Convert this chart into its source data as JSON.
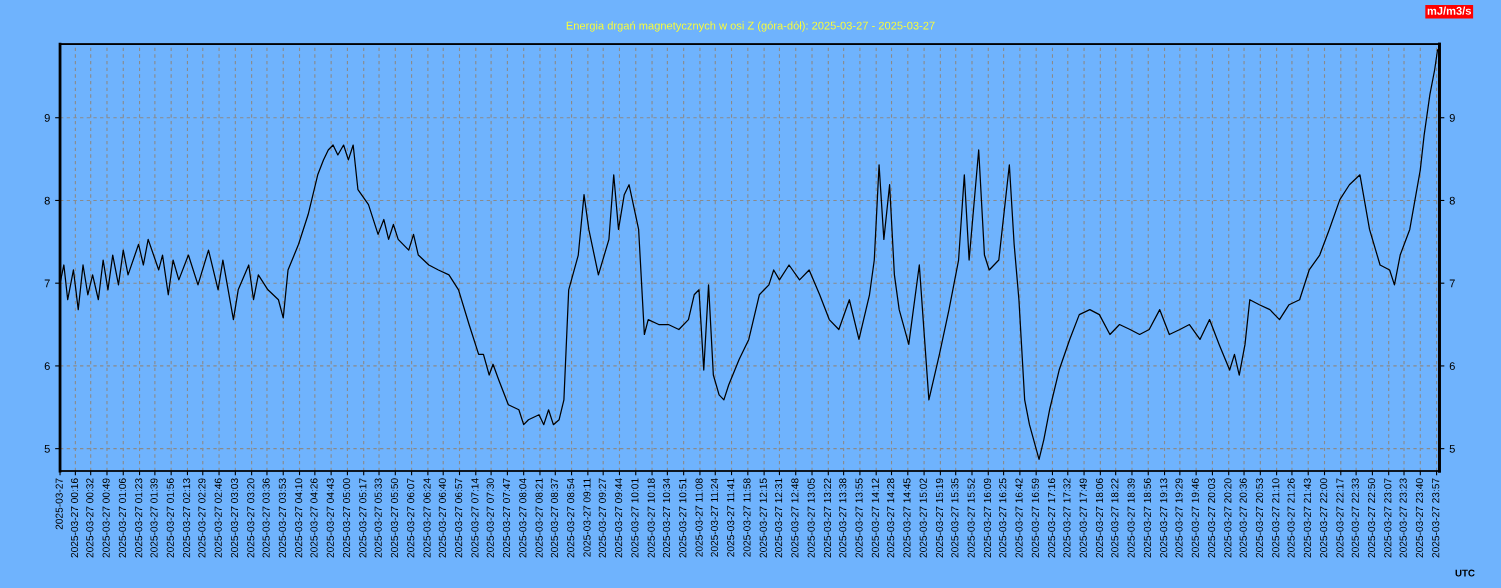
{
  "chart_data": {
    "type": "line",
    "title": "Energia drgań magnetycznych w osi Z (góra-dół): 2025-03-27 - 2025-03-27",
    "xlabel": "UTC",
    "annotations": [
      "mJ/m3/s"
    ],
    "grid": true,
    "line_style": "solid",
    "marker": "none",
    "xlim": [
      "2025-03-27T00:00",
      "2025-03-28T00:00"
    ],
    "ylim": [
      4.73,
      9.89
    ],
    "yticks": [
      5,
      6,
      7,
      8,
      9
    ],
    "y2lim": [
      4.73,
      9.89
    ],
    "y2ticks": [
      5,
      6,
      7,
      8,
      9
    ],
    "xticks": [
      {
        "value": "2025-03-27T00:00",
        "label": "2025-03-27"
      },
      {
        "value": "2025-03-27T00:16",
        "label": "2025-03-27 00:16"
      },
      {
        "value": "2025-03-27T00:32",
        "label": "2025-03-27 00:32"
      },
      {
        "value": "2025-03-27T00:49",
        "label": "2025-03-27 00:49"
      },
      {
        "value": "2025-03-27T01:06",
        "label": "2025-03-27 01:06"
      },
      {
        "value": "2025-03-27T01:23",
        "label": "2025-03-27 01:23"
      },
      {
        "value": "2025-03-27T01:39",
        "label": "2025-03-27 01:39"
      },
      {
        "value": "2025-03-27T01:56",
        "label": "2025-03-27 01:56"
      },
      {
        "value": "2025-03-27T02:13",
        "label": "2025-03-27 02:13"
      },
      {
        "value": "2025-03-27T02:29",
        "label": "2025-03-27 02:29"
      },
      {
        "value": "2025-03-27T02:46",
        "label": "2025-03-27 02:46"
      },
      {
        "value": "2025-03-27T03:03",
        "label": "2025-03-27 03:03"
      },
      {
        "value": "2025-03-27T03:20",
        "label": "2025-03-27 03:20"
      },
      {
        "value": "2025-03-27T03:36",
        "label": "2025-03-27 03:36"
      },
      {
        "value": "2025-03-27T03:53",
        "label": "2025-03-27 03:53"
      },
      {
        "value": "2025-03-27T04:10",
        "label": "2025-03-27 04:10"
      },
      {
        "value": "2025-03-27T04:26",
        "label": "2025-03-27 04:26"
      },
      {
        "value": "2025-03-27T04:43",
        "label": "2025-03-27 04:43"
      },
      {
        "value": "2025-03-27T05:00",
        "label": "2025-03-27 05:00"
      },
      {
        "value": "2025-03-27T05:17",
        "label": "2025-03-27 05:17"
      },
      {
        "value": "2025-03-27T05:33",
        "label": "2025-03-27 05:33"
      },
      {
        "value": "2025-03-27T05:50",
        "label": "2025-03-27 05:50"
      },
      {
        "value": "2025-03-27T06:07",
        "label": "2025-03-27 06:07"
      },
      {
        "value": "2025-03-27T06:24",
        "label": "2025-03-27 06:24"
      },
      {
        "value": "2025-03-27T06:40",
        "label": "2025-03-27 06:40"
      },
      {
        "value": "2025-03-27T06:57",
        "label": "2025-03-27 06:57"
      },
      {
        "value": "2025-03-27T07:14",
        "label": "2025-03-27 07:14"
      },
      {
        "value": "2025-03-27T07:30",
        "label": "2025-03-27 07:30"
      },
      {
        "value": "2025-03-27T07:47",
        "label": "2025-03-27 07:47"
      },
      {
        "value": "2025-03-27T08:04",
        "label": "2025-03-27 08:04"
      },
      {
        "value": "2025-03-27T08:21",
        "label": "2025-03-27 08:21"
      },
      {
        "value": "2025-03-27T08:37",
        "label": "2025-03-27 08:37"
      },
      {
        "value": "2025-03-27T08:54",
        "label": "2025-03-27 08:54"
      },
      {
        "value": "2025-03-27T09:11",
        "label": "2025-03-27 09:11"
      },
      {
        "value": "2025-03-27T09:27",
        "label": "2025-03-27 09:27"
      },
      {
        "value": "2025-03-27T09:44",
        "label": "2025-03-27 09:44"
      },
      {
        "value": "2025-03-27T10:01",
        "label": "2025-03-27 10:01"
      },
      {
        "value": "2025-03-27T10:18",
        "label": "2025-03-27 10:18"
      },
      {
        "value": "2025-03-27T10:34",
        "label": "2025-03-27 10:34"
      },
      {
        "value": "2025-03-27T10:51",
        "label": "2025-03-27 10:51"
      },
      {
        "value": "2025-03-27T11:08",
        "label": "2025-03-27 11:08"
      },
      {
        "value": "2025-03-27T11:24",
        "label": "2025-03-27 11:24"
      },
      {
        "value": "2025-03-27T11:41",
        "label": "2025-03-27 11:41"
      },
      {
        "value": "2025-03-27T11:58",
        "label": "2025-03-27 11:58"
      },
      {
        "value": "2025-03-27T12:15",
        "label": "2025-03-27 12:15"
      },
      {
        "value": "2025-03-27T12:31",
        "label": "2025-03-27 12:31"
      },
      {
        "value": "2025-03-27T12:48",
        "label": "2025-03-27 12:48"
      },
      {
        "value": "2025-03-27T13:05",
        "label": "2025-03-27 13:05"
      },
      {
        "value": "2025-03-27T13:22",
        "label": "2025-03-27 13:22"
      },
      {
        "value": "2025-03-27T13:38",
        "label": "2025-03-27 13:38"
      },
      {
        "value": "2025-03-27T13:55",
        "label": "2025-03-27 13:55"
      },
      {
        "value": "2025-03-27T14:12",
        "label": "2025-03-27 14:12"
      },
      {
        "value": "2025-03-27T14:28",
        "label": "2025-03-27 14:28"
      },
      {
        "value": "2025-03-27T14:45",
        "label": "2025-03-27 14:45"
      },
      {
        "value": "2025-03-27T15:02",
        "label": "2025-03-27 15:02"
      },
      {
        "value": "2025-03-27T15:19",
        "label": "2025-03-27 15:19"
      },
      {
        "value": "2025-03-27T15:35",
        "label": "2025-03-27 15:35"
      },
      {
        "value": "2025-03-27T15:52",
        "label": "2025-03-27 15:52"
      },
      {
        "value": "2025-03-27T16:09",
        "label": "2025-03-27 16:09"
      },
      {
        "value": "2025-03-27T16:25",
        "label": "2025-03-27 16:25"
      },
      {
        "value": "2025-03-27T16:42",
        "label": "2025-03-27 16:42"
      },
      {
        "value": "2025-03-27T16:59",
        "label": "2025-03-27 16:59"
      },
      {
        "value": "2025-03-27T17:16",
        "label": "2025-03-27 17:16"
      },
      {
        "value": "2025-03-27T17:32",
        "label": "2025-03-27 17:32"
      },
      {
        "value": "2025-03-27T17:49",
        "label": "2025-03-27 17:49"
      },
      {
        "value": "2025-03-27T18:06",
        "label": "2025-03-27 18:06"
      },
      {
        "value": "2025-03-27T18:22",
        "label": "2025-03-27 18:22"
      },
      {
        "value": "2025-03-27T18:39",
        "label": "2025-03-27 18:39"
      },
      {
        "value": "2025-03-27T18:56",
        "label": "2025-03-27 18:56"
      },
      {
        "value": "2025-03-27T19:13",
        "label": "2025-03-27 19:13"
      },
      {
        "value": "2025-03-27T19:29",
        "label": "2025-03-27 19:29"
      },
      {
        "value": "2025-03-27T19:46",
        "label": "2025-03-27 19:46"
      },
      {
        "value": "2025-03-27T20:03",
        "label": "2025-03-27 20:03"
      },
      {
        "value": "2025-03-27T20:20",
        "label": "2025-03-27 20:20"
      },
      {
        "value": "2025-03-27T20:36",
        "label": "2025-03-27 20:36"
      },
      {
        "value": "2025-03-27T20:53",
        "label": "2025-03-27 20:53"
      },
      {
        "value": "2025-03-27T21:10",
        "label": "2025-03-27 21:10"
      },
      {
        "value": "2025-03-27T21:26",
        "label": "2025-03-27 21:26"
      },
      {
        "value": "2025-03-27T21:43",
        "label": "2025-03-27 21:43"
      },
      {
        "value": "2025-03-27T22:00",
        "label": "2025-03-27 22:00"
      },
      {
        "value": "2025-03-27T22:17",
        "label": "2025-03-27 22:17"
      },
      {
        "value": "2025-03-27T22:33",
        "label": "2025-03-27 22:33"
      },
      {
        "value": "2025-03-27T22:50",
        "label": "2025-03-27 22:50"
      },
      {
        "value": "2025-03-27T23:07",
        "label": "2025-03-27 23:07"
      },
      {
        "value": "2025-03-27T23:23",
        "label": "2025-03-27 23:23"
      },
      {
        "value": "2025-03-27T23:40",
        "label": "2025-03-27 23:40"
      },
      {
        "value": "2025-03-27T23:57",
        "label": "2025-03-27 23:57"
      }
    ],
    "series": [
      {
        "color": "#000000",
        "x": [
          "2025-03-27T00:00",
          "2025-03-27T00:04",
          "2025-03-27T00:08",
          "2025-03-27T00:14",
          "2025-03-27T00:19",
          "2025-03-27T00:24",
          "2025-03-27T00:29",
          "2025-03-27T00:34",
          "2025-03-27T00:40",
          "2025-03-27T00:45",
          "2025-03-27T00:50",
          "2025-03-27T00:55",
          "2025-03-27T01:01",
          "2025-03-27T01:06",
          "2025-03-27T01:11",
          "2025-03-27T01:22",
          "2025-03-27T01:27",
          "2025-03-27T01:32",
          "2025-03-27T01:43",
          "2025-03-27T01:47",
          "2025-03-27T01:53",
          "2025-03-27T01:58",
          "2025-03-27T02:04",
          "2025-03-27T02:14",
          "2025-03-27T02:24",
          "2025-03-27T02:35",
          "2025-03-27T02:45",
          "2025-03-27T02:50",
          "2025-03-27T03:01",
          "2025-03-27T03:06",
          "2025-03-27T03:17",
          "2025-03-27T03:22",
          "2025-03-27T03:27",
          "2025-03-27T03:37",
          "2025-03-27T03:48",
          "2025-03-27T03:53",
          "2025-03-27T03:58",
          "2025-03-27T04:09",
          "2025-03-27T04:19",
          "2025-03-27T04:29",
          "2025-03-27T04:35",
          "2025-03-27T04:40",
          "2025-03-27T04:45",
          "2025-03-27T04:50",
          "2025-03-27T04:56",
          "2025-03-27T05:01",
          "2025-03-27T05:06",
          "2025-03-27T05:11",
          "2025-03-27T05:22",
          "2025-03-27T05:32",
          "2025-03-27T05:38",
          "2025-03-27T05:43",
          "2025-03-27T05:48",
          "2025-03-27T05:53",
          "2025-03-27T06:04",
          "2025-03-27T06:09",
          "2025-03-27T06:14",
          "2025-03-27T06:25",
          "2025-03-27T06:35",
          "2025-03-27T06:46",
          "2025-03-27T06:56",
          "2025-03-27T07:07",
          "2025-03-27T07:17",
          "2025-03-27T07:22",
          "2025-03-27T07:28",
          "2025-03-27T07:32",
          "2025-03-27T07:38",
          "2025-03-27T07:48",
          "2025-03-27T07:59",
          "2025-03-27T08:04",
          "2025-03-27T08:09",
          "2025-03-27T08:20",
          "2025-03-27T08:25",
          "2025-03-27T08:30",
          "2025-03-27T08:35",
          "2025-03-27T08:41",
          "2025-03-27T08:46",
          "2025-03-27T08:51",
          "2025-03-27T09:01",
          "2025-03-27T09:07",
          "2025-03-27T09:12",
          "2025-03-27T09:22",
          "2025-03-27T09:33",
          "2025-03-27T09:38",
          "2025-03-27T09:43",
          "2025-03-27T09:49",
          "2025-03-27T09:54",
          "2025-03-27T10:04",
          "2025-03-27T10:10",
          "2025-03-27T10:14",
          "2025-03-27T10:25",
          "2025-03-27T10:35",
          "2025-03-27T10:46",
          "2025-03-27T10:56",
          "2025-03-27T11:02",
          "2025-03-27T11:07",
          "2025-03-27T11:12",
          "2025-03-27T11:17",
          "2025-03-27T11:22",
          "2025-03-27T11:28",
          "2025-03-27T11:33",
          "2025-03-27T11:38",
          "2025-03-27T11:49",
          "2025-03-27T11:59",
          "2025-03-27T12:10",
          "2025-03-27T12:20",
          "2025-03-27T12:25",
          "2025-03-27T12:31",
          "2025-03-27T12:41",
          "2025-03-27T12:52",
          "2025-03-27T13:02",
          "2025-03-27T13:13",
          "2025-03-27T13:23",
          "2025-03-27T13:33",
          "2025-03-27T13:44",
          "2025-03-27T13:54",
          "2025-03-27T14:05",
          "2025-03-27T14:10",
          "2025-03-27T14:15",
          "2025-03-27T14:20",
          "2025-03-27T14:26",
          "2025-03-27T14:31",
          "2025-03-27T14:36",
          "2025-03-27T14:46",
          "2025-03-27T14:57",
          "2025-03-27T15:07",
          "2025-03-27T15:18",
          "2025-03-27T15:28",
          "2025-03-27T15:38",
          "2025-03-27T15:44",
          "2025-03-27T15:49",
          "2025-03-27T15:59",
          "2025-03-27T16:05",
          "2025-03-27T16:10",
          "2025-03-27T16:20",
          "2025-03-27T16:31",
          "2025-03-27T16:36",
          "2025-03-27T16:41",
          "2025-03-27T16:47",
          "2025-03-27T16:52",
          "2025-03-27T17:02",
          "2025-03-27T17:07",
          "2025-03-27T17:13",
          "2025-03-27T17:23",
          "2025-03-27T17:34",
          "2025-03-27T17:44",
          "2025-03-27T17:55",
          "2025-03-27T18:05",
          "2025-03-27T18:16",
          "2025-03-27T18:26",
          "2025-03-27T18:37",
          "2025-03-27T18:47",
          "2025-03-27T18:57",
          "2025-03-27T19:08",
          "2025-03-27T19:18",
          "2025-03-27T19:29",
          "2025-03-27T19:39",
          "2025-03-27T19:50",
          "2025-03-27T20:00",
          "2025-03-27T20:10",
          "2025-03-27T20:21",
          "2025-03-27T20:26",
          "2025-03-27T20:31",
          "2025-03-27T20:37",
          "2025-03-27T20:42",
          "2025-03-27T20:52",
          "2025-03-27T21:03",
          "2025-03-27T21:13",
          "2025-03-27T21:23",
          "2025-03-27T21:34",
          "2025-03-27T21:44",
          "2025-03-27T21:55",
          "2025-03-27T22:05",
          "2025-03-27T22:16",
          "2025-03-27T22:26",
          "2025-03-27T22:37",
          "2025-03-27T22:47",
          "2025-03-27T22:58",
          "2025-03-27T23:08",
          "2025-03-27T23:13",
          "2025-03-27T23:19",
          "2025-03-27T23:29",
          "2025-03-27T23:40",
          "2025-03-27T23:44",
          "2025-03-27T23:50",
          "2025-03-27T23:55",
          "2025-03-27T23:58"
        ],
        "values": [
          7.0,
          7.22,
          6.8,
          7.16,
          6.68,
          7.22,
          6.86,
          7.1,
          6.8,
          7.28,
          6.92,
          7.34,
          6.98,
          7.4,
          7.1,
          7.47,
          7.22,
          7.53,
          7.16,
          7.34,
          6.86,
          7.28,
          7.04,
          7.34,
          6.98,
          7.4,
          6.92,
          7.28,
          6.56,
          6.92,
          7.22,
          6.8,
          7.1,
          6.92,
          6.8,
          6.58,
          7.16,
          7.47,
          7.83,
          8.31,
          8.49,
          8.61,
          8.67,
          8.55,
          8.67,
          8.49,
          8.67,
          8.13,
          7.95,
          7.59,
          7.77,
          7.53,
          7.71,
          7.53,
          7.4,
          7.59,
          7.34,
          7.22,
          7.16,
          7.1,
          6.92,
          6.5,
          6.14,
          6.14,
          5.89,
          6.02,
          5.83,
          5.53,
          5.47,
          5.29,
          5.35,
          5.41,
          5.29,
          5.47,
          5.29,
          5.35,
          5.59,
          6.92,
          7.34,
          8.07,
          7.65,
          7.1,
          7.53,
          8.31,
          7.65,
          8.07,
          8.19,
          7.65,
          6.38,
          6.56,
          6.5,
          6.5,
          6.44,
          6.56,
          6.86,
          6.92,
          5.95,
          6.98,
          5.89,
          5.65,
          5.59,
          5.77,
          6.08,
          6.32,
          6.86,
          6.98,
          7.16,
          7.04,
          7.22,
          7.04,
          7.16,
          6.86,
          6.56,
          6.44,
          6.8,
          6.32,
          6.86,
          7.28,
          8.43,
          7.53,
          8.19,
          7.1,
          6.68,
          6.26,
          7.22,
          5.59,
          6.14,
          6.68,
          7.28,
          8.31,
          7.28,
          8.61,
          7.34,
          7.16,
          7.28,
          8.43,
          7.47,
          6.8,
          5.59,
          5.29,
          4.87,
          5.11,
          5.47,
          5.95,
          6.32,
          6.62,
          6.68,
          6.62,
          6.38,
          6.5,
          6.44,
          6.38,
          6.44,
          6.68,
          6.38,
          6.44,
          6.5,
          6.32,
          6.56,
          6.26,
          5.95,
          6.14,
          5.89,
          6.26,
          6.8,
          6.74,
          6.68,
          6.56,
          6.74,
          6.8,
          7.16,
          7.34,
          7.65,
          8.01,
          8.19,
          8.31,
          7.65,
          7.22,
          7.16,
          6.98,
          7.34,
          7.65,
          8.37,
          8.79,
          9.28,
          9.58,
          9.82
        ]
      }
    ]
  }
}
